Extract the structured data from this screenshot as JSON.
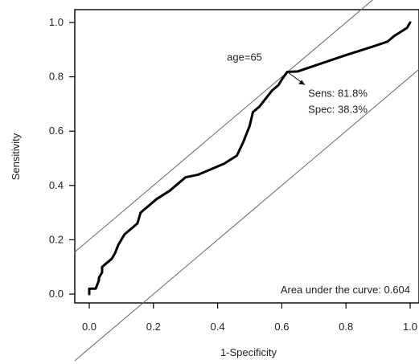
{
  "chart_data": {
    "type": "line",
    "title": "",
    "xlabel": "1-Specificity",
    "ylabel": "Sensitivity",
    "xlim": [
      0,
      1
    ],
    "ylim": [
      0,
      1
    ],
    "xticks": [
      "0.0",
      "0.2",
      "0.4",
      "0.6",
      "0.8",
      "1.0"
    ],
    "yticks": [
      "0.0",
      "0.2",
      "0.4",
      "0.6",
      "0.8",
      "1.0"
    ],
    "grid": false,
    "legend": "none",
    "series": [
      {
        "x": [
          0.0,
          0.0,
          0.01,
          0.02,
          0.03,
          0.03,
          0.04,
          0.04,
          0.05,
          0.06,
          0.07,
          0.08,
          0.09,
          0.1,
          0.11,
          0.13,
          0.15,
          0.16,
          0.18,
          0.21,
          0.25,
          0.28,
          0.3,
          0.34,
          0.38,
          0.42,
          0.46,
          0.48,
          0.5,
          0.51,
          0.53,
          0.55,
          0.57,
          0.59,
          0.6,
          0.617,
          0.65,
          0.7,
          0.75,
          0.8,
          0.88,
          0.93,
          0.95,
          0.99,
          1.0
        ],
        "y": [
          0.0,
          0.02,
          0.02,
          0.02,
          0.05,
          0.06,
          0.08,
          0.1,
          0.11,
          0.12,
          0.13,
          0.15,
          0.18,
          0.2,
          0.22,
          0.24,
          0.26,
          0.3,
          0.32,
          0.35,
          0.38,
          0.41,
          0.43,
          0.44,
          0.46,
          0.48,
          0.51,
          0.56,
          0.62,
          0.67,
          0.69,
          0.72,
          0.75,
          0.77,
          0.79,
          0.818,
          0.82,
          0.84,
          0.86,
          0.88,
          0.91,
          0.93,
          0.95,
          0.98,
          1.0
        ],
        "color": "#000000"
      }
    ],
    "reference_lines": [
      {
        "intercept": 0.2,
        "slope": 1,
        "color": "#666666"
      },
      {
        "intercept": -0.2,
        "slope": 1,
        "color": "#666666"
      }
    ],
    "annotations": {
      "point_x": 0.617,
      "point_y": 0.818,
      "point_label": "age=65",
      "sens_label": "Sens: 81.8%",
      "spec_label": "Spec: 38.3%",
      "auc_label": "Area under the curve: 0.604"
    }
  }
}
